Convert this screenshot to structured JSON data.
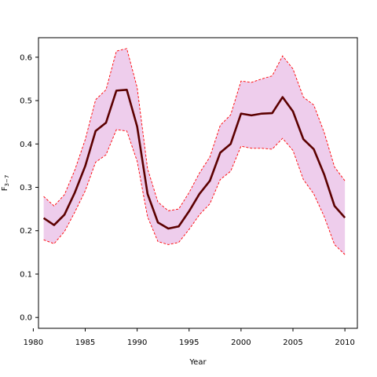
{
  "chart_data": {
    "type": "line",
    "title": "",
    "xlabel": "Year",
    "ylabel": "F",
    "ylabel_subscript": "3−7",
    "xlim": [
      1980.5,
      2011.2
    ],
    "ylim": [
      -0.025,
      0.645
    ],
    "x_ticks": [
      1980,
      1985,
      1990,
      1995,
      2000,
      2005,
      2010
    ],
    "x_tick_labels": [
      "1980",
      "1985",
      "1990",
      "1995",
      "2000",
      "2005",
      "2010"
    ],
    "y_ticks": [
      0.0,
      0.1,
      0.2,
      0.3,
      0.4,
      0.5,
      0.6
    ],
    "y_tick_labels": [
      "0.0",
      "0.1",
      "0.2",
      "0.3",
      "0.4",
      "0.5",
      "0.6"
    ],
    "grid": false,
    "x": [
      1981,
      1982,
      1983,
      1984,
      1985,
      1986,
      1987,
      1988,
      1989,
      1990,
      1991,
      1992,
      1993,
      1994,
      1995,
      1996,
      1997,
      1998,
      1999,
      2000,
      2001,
      2002,
      2003,
      2004,
      2005,
      2006,
      2007,
      2008,
      2009,
      2010
    ],
    "series": [
      {
        "role": "estimate",
        "values": [
          0.229,
          0.213,
          0.237,
          0.288,
          0.349,
          0.43,
          0.449,
          0.523,
          0.525,
          0.44,
          0.285,
          0.219,
          0.205,
          0.21,
          0.245,
          0.285,
          0.315,
          0.38,
          0.4,
          0.47,
          0.466,
          0.47,
          0.471,
          0.508,
          0.475,
          0.411,
          0.388,
          0.33,
          0.257,
          0.23
        ],
        "color": "#5c0000"
      },
      {
        "role": "upper",
        "values": [
          0.279,
          0.257,
          0.283,
          0.34,
          0.41,
          0.502,
          0.525,
          0.614,
          0.62,
          0.53,
          0.343,
          0.266,
          0.246,
          0.25,
          0.288,
          0.333,
          0.37,
          0.443,
          0.467,
          0.545,
          0.542,
          0.55,
          0.557,
          0.603,
          0.573,
          0.508,
          0.49,
          0.427,
          0.347,
          0.315
        ],
        "color": "#ff0000"
      },
      {
        "role": "lower",
        "values": [
          0.179,
          0.17,
          0.198,
          0.243,
          0.292,
          0.358,
          0.375,
          0.433,
          0.43,
          0.36,
          0.232,
          0.175,
          0.168,
          0.173,
          0.203,
          0.237,
          0.262,
          0.318,
          0.337,
          0.395,
          0.39,
          0.39,
          0.388,
          0.413,
          0.385,
          0.318,
          0.285,
          0.233,
          0.168,
          0.145
        ]
      }
    ],
    "band_fill": "#eecdec",
    "band_line_color": "#ff0000"
  }
}
